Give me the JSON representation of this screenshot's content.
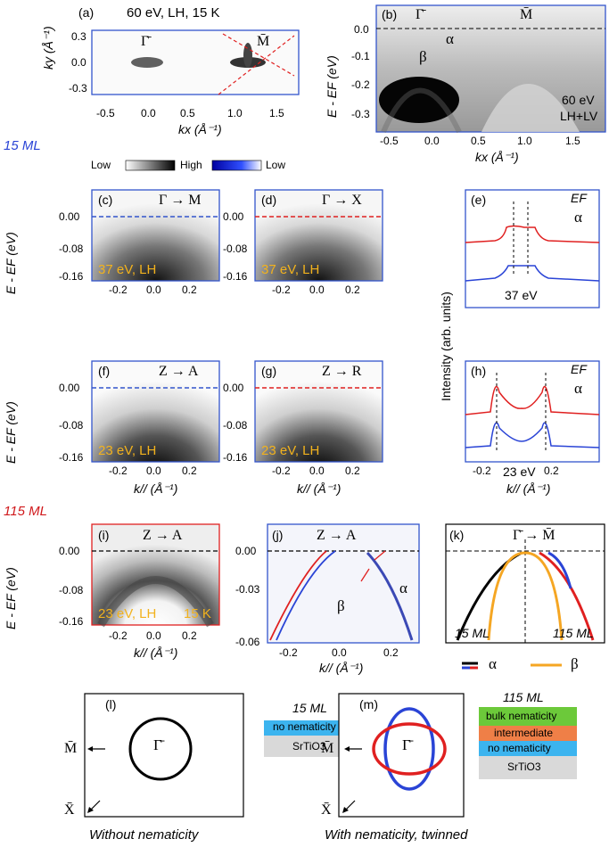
{
  "panel_a": {
    "letter": "(a)",
    "title": "60 eV, LH, 15 K",
    "gamma": "Γ̄",
    "m": "M̄",
    "xlabel": "kx (Å⁻¹)",
    "ylabel": "ky (Å⁻¹)",
    "xticks": [
      "-0.5",
      "0.0",
      "0.5",
      "1.0",
      "1.5"
    ],
    "yticks": [
      "0.3",
      "0.0",
      "-0.3"
    ]
  },
  "panel_b": {
    "letter": "(b)",
    "gamma": "Γ̄",
    "m": "M̄",
    "alpha": "α",
    "beta": "β",
    "energy": "60 eV",
    "pol": "LH+LV",
    "ylabel": "E - EF (eV)",
    "xlabel": "kx (Å⁻¹)",
    "yticks": [
      "0.0",
      "-0.1",
      "-0.2",
      "-0.3"
    ],
    "xticks": [
      "-0.5",
      "0.0",
      "0.5",
      "1.0",
      "1.5"
    ]
  },
  "colorbar": {
    "low1": "Low",
    "high": "High",
    "low2": "Low"
  },
  "section_15": "15 ML",
  "section_115": "115 ML",
  "panel_c": {
    "letter": "(c)",
    "path": "Γ → M",
    "info": "37 eV, LH"
  },
  "panel_d": {
    "letter": "(d)",
    "path": "Γ → X",
    "info": "37 eV, LH"
  },
  "panel_e": {
    "letter": "(e)",
    "ef": "EF",
    "alpha": "α",
    "energy": "37 eV"
  },
  "panel_f": {
    "letter": "(f)",
    "path": "Z → A",
    "info": "23 eV, LH"
  },
  "panel_g": {
    "letter": "(g)",
    "path": "Z → R",
    "info": "23 eV, LH"
  },
  "panel_h": {
    "letter": "(h)",
    "ef": "EF",
    "alpha": "α",
    "energy": "23 eV"
  },
  "panel_i": {
    "letter": "(i)",
    "path": "Z → A",
    "info": "23 eV, LH",
    "temp": "15 K"
  },
  "panel_j": {
    "letter": "(j)",
    "path": "Z → A",
    "alpha": "α",
    "beta": "β",
    "yticks": [
      "0.00",
      "-0.03",
      "-0.06"
    ],
    "xticks": [
      "-0.2",
      "0.0",
      "0.2"
    ]
  },
  "panel_k": {
    "letter": "(k)",
    "path": "Γ̄ → M̄",
    "left": "15 ML",
    "right": "115 ML"
  },
  "legend": {
    "alpha": "α",
    "beta": "β"
  },
  "mid_yticks": [
    "0.00",
    "-0.08",
    "-0.16"
  ],
  "mid_xticks": [
    "-0.2",
    "0.0",
    "0.2"
  ],
  "mid_ylabel": "E - EF (eV)",
  "kpar_label": "k// (Å⁻¹)",
  "intensity_label": "Intensity (arb. units)",
  "panel_l": {
    "letter": "(l)",
    "gamma": "Γ̄",
    "m": "M̄",
    "x": "X̄",
    "layer_title": "15 ML",
    "layers": [
      "no nematicity",
      "SrTiO3"
    ],
    "caption": "Without nematicity"
  },
  "panel_m": {
    "letter": "(m)",
    "gamma": "Γ̄",
    "m": "M̄",
    "x": "X̄",
    "layer_title": "115 ML",
    "layers": [
      "bulk nematicity",
      "intermediate",
      "no nematicity",
      "SrTiO3"
    ],
    "caption": "With nematicity, twinned"
  },
  "colors": {
    "blue": "#2a44d6",
    "red": "#d0191c",
    "orange": "#f5a623",
    "black": "#000000",
    "green": "#6cc93a",
    "cyan": "#3cb4ef",
    "salmon": "#ef7f47",
    "gray": "#d9d9d9"
  }
}
